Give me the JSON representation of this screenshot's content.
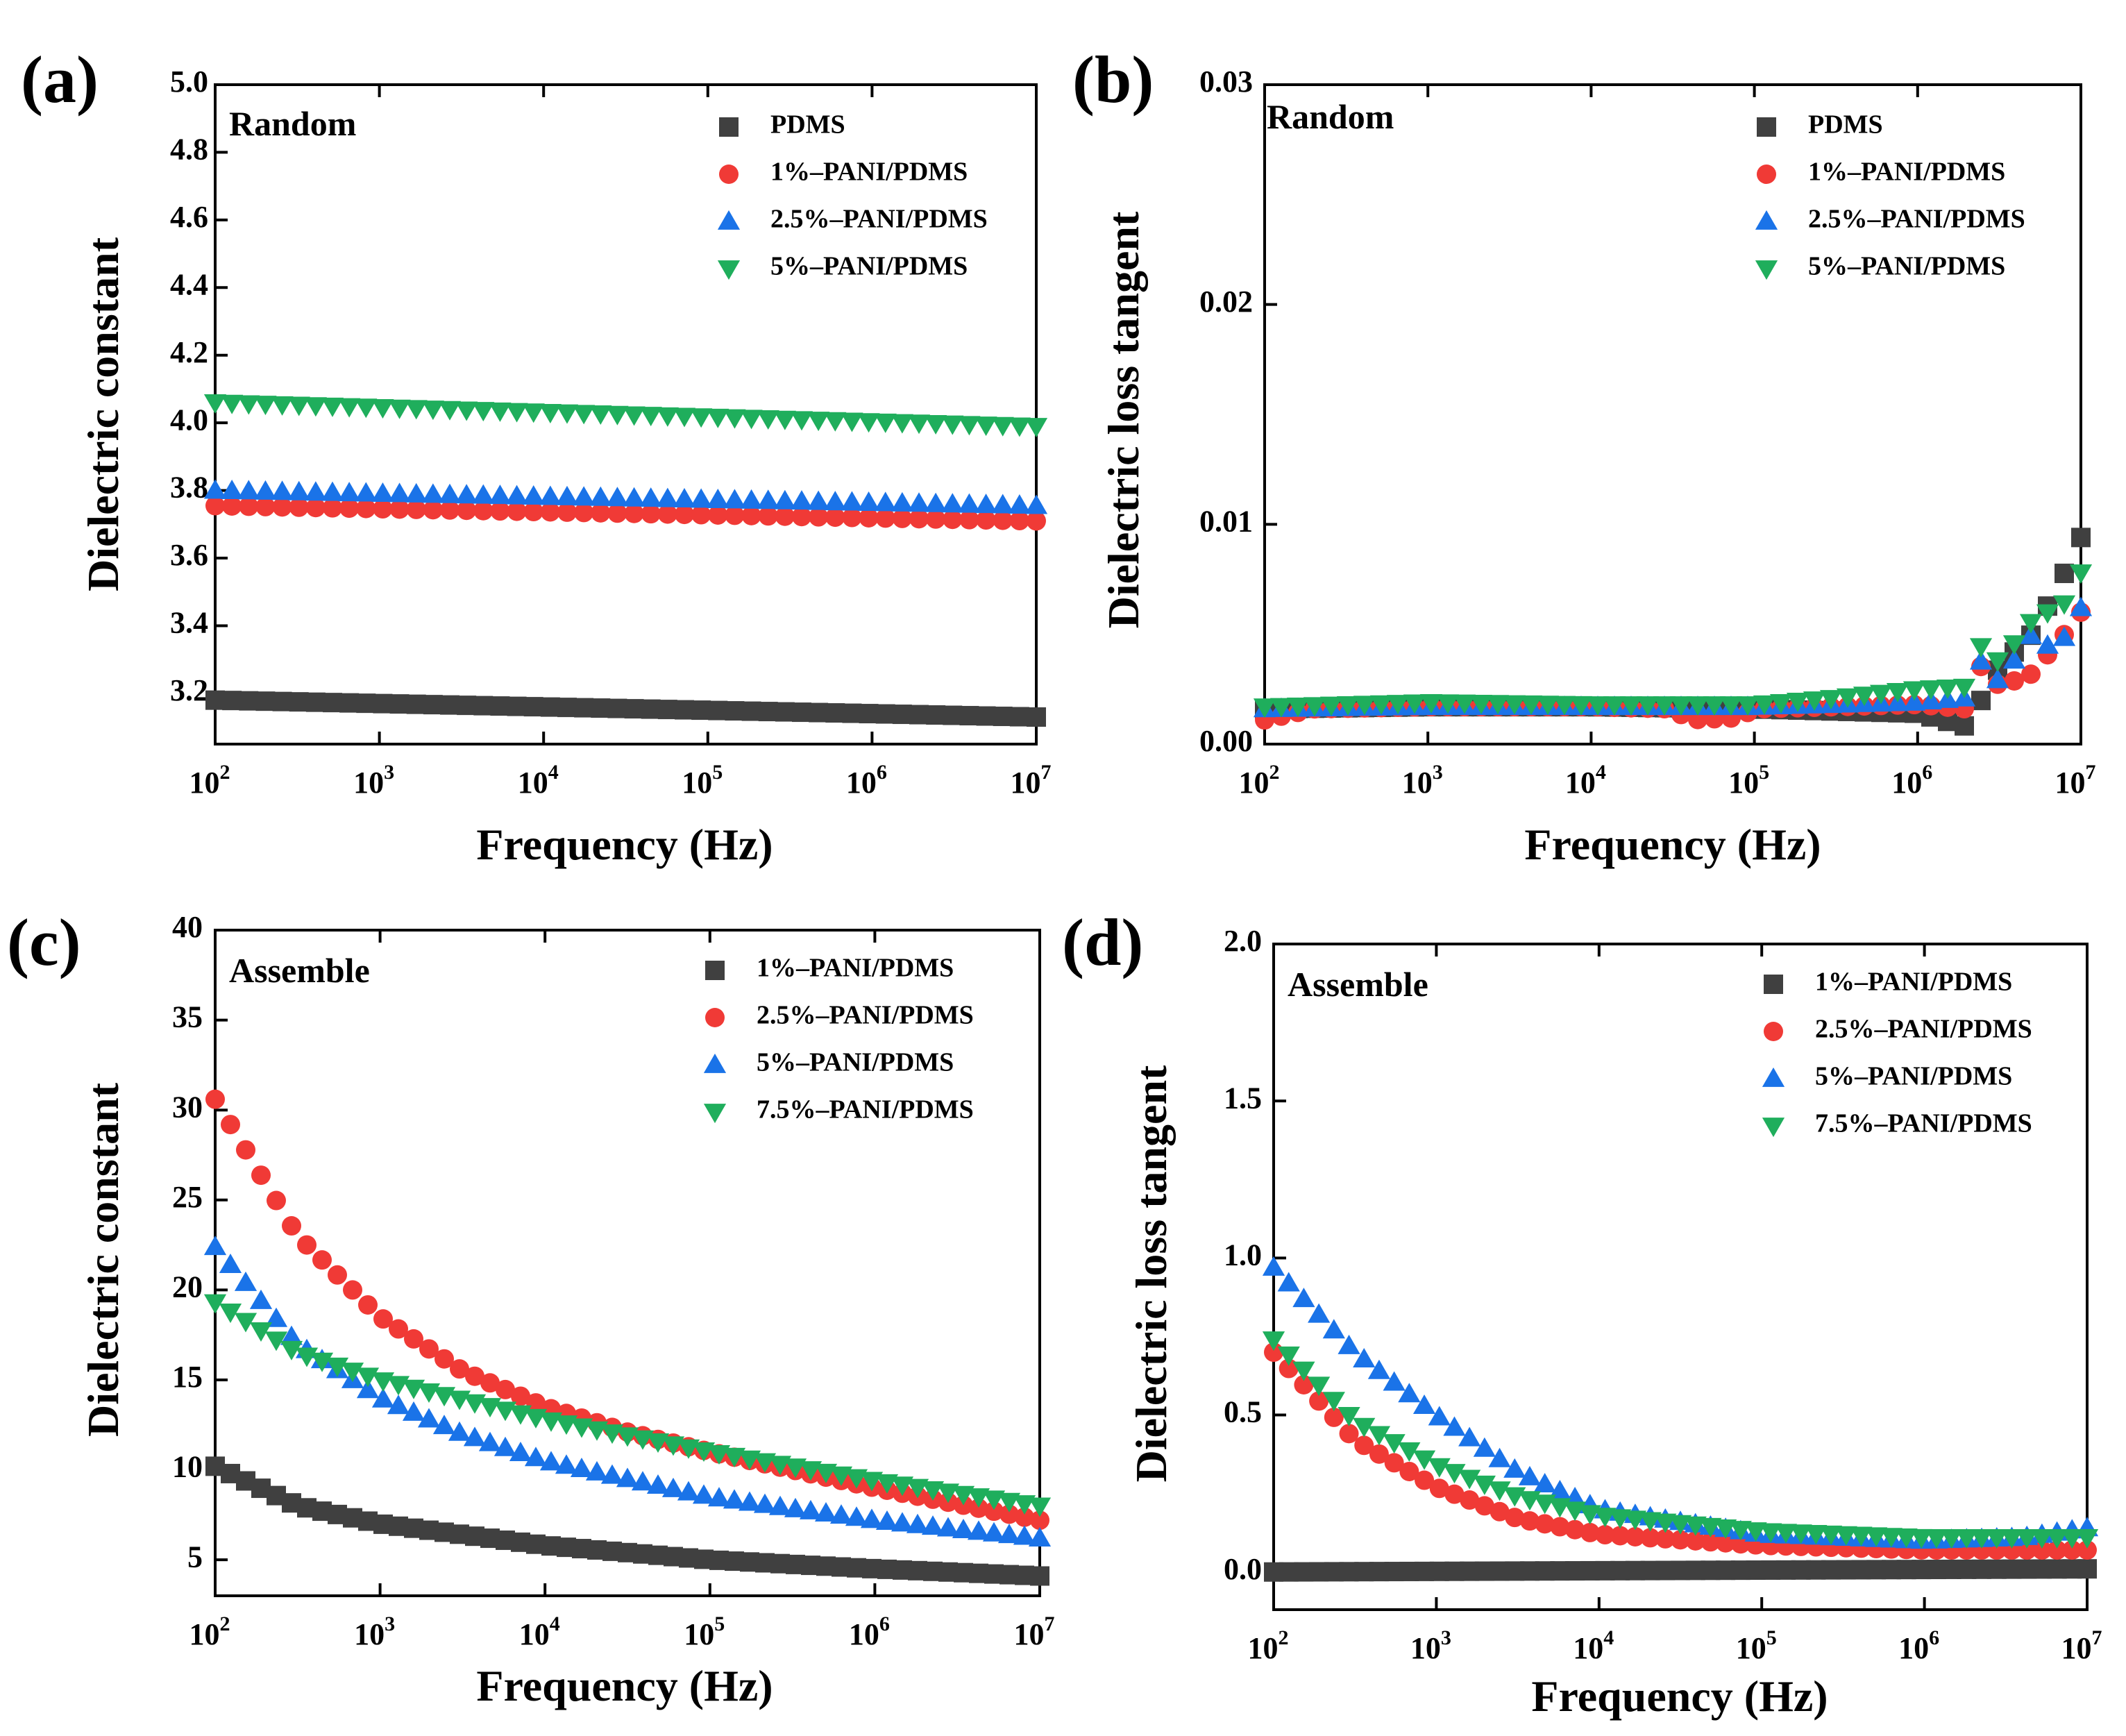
{
  "colors": {
    "gray": "#404040",
    "red": "#f03a36",
    "blue": "#1a73e8",
    "green": "#1fae5c"
  },
  "chart_data": [
    {
      "panel": "(a)",
      "type": "scatter",
      "annotation": "Random",
      "xlabel": "Frequency (Hz)",
      "ylabel": "Dielectric constant",
      "xscale": "log",
      "xlim": [
        100,
        10000000
      ],
      "ylim": [
        3.05,
        5.0
      ],
      "xticks": [
        100,
        1000,
        10000,
        100000,
        1000000,
        10000000
      ],
      "xtick_base": [
        "10",
        "10",
        "10",
        "10",
        "10",
        "10"
      ],
      "xtick_exp": [
        "2",
        "3",
        "4",
        "5",
        "6",
        "7"
      ],
      "yticks": [
        3.2,
        3.4,
        3.6,
        3.8,
        4.0,
        4.2,
        4.4,
        4.6,
        4.8,
        5.0
      ],
      "ytick_labels": [
        "3.2",
        "3.4",
        "3.6",
        "3.8",
        "4.0",
        "4.2",
        "4.4",
        "4.6",
        "4.8",
        "5.0"
      ],
      "legend_position": "top-right",
      "n_points": 50,
      "series": [
        {
          "name": "PDMS",
          "marker": "square",
          "color": "gray",
          "curve": {
            "kind": "log_linear",
            "start": 3.18,
            "end": 3.13
          }
        },
        {
          "name": "1%–PANI/PDMS",
          "marker": "circle",
          "color": "red",
          "curve": {
            "kind": "log_linear",
            "start": 3.755,
            "end": 3.71
          }
        },
        {
          "name": "2.5%–PANI/PDMS",
          "marker": "triangle-up",
          "color": "blue",
          "curve": {
            "kind": "log_linear",
            "start": 3.8,
            "end": 3.755
          }
        },
        {
          "name": "5%–PANI/PDMS",
          "marker": "triangle-down",
          "color": "green",
          "curve": {
            "kind": "log_linear",
            "start": 4.06,
            "end": 3.99
          }
        }
      ]
    },
    {
      "panel": "(b)",
      "type": "scatter",
      "annotation": "Random",
      "xlabel": "Frequency (Hz)",
      "ylabel": "Dielectric loss tangent",
      "xscale": "log",
      "xlim": [
        100,
        10000000
      ],
      "ylim": [
        0,
        0.03
      ],
      "xticks": [
        100,
        1000,
        10000,
        100000,
        1000000,
        10000000
      ],
      "xtick_base": [
        "10",
        "10",
        "10",
        "10",
        "10",
        "10"
      ],
      "xtick_exp": [
        "2",
        "3",
        "4",
        "5",
        "6",
        "7"
      ],
      "yticks": [
        0,
        0.01,
        0.02,
        0.03
      ],
      "ytick_labels": [
        "0.00",
        "0.01",
        "0.02",
        "0.03"
      ],
      "legend_position": "top-right",
      "n_points": 50,
      "series": [
        {
          "name": "PDMS",
          "marker": "square",
          "color": "gray",
          "curve": {
            "kind": "knots",
            "knots": [
              [
                2,
                0.0016
              ],
              [
                3,
                0.0017
              ],
              [
                4,
                0.0017
              ],
              [
                5,
                0.0016
              ],
              [
                5.5,
                0.0015
              ],
              [
                6,
                0.0014
              ],
              [
                6.3,
                0.0008
              ],
              [
                6.5,
                0.0035
              ],
              [
                6.7,
                0.005
              ],
              [
                6.85,
                0.007
              ],
              [
                7,
                0.0094
              ]
            ]
          }
        },
        {
          "name": "1%–PANI/PDMS",
          "marker": "circle",
          "color": "red",
          "curve": {
            "kind": "knots",
            "knots": [
              [
                2,
                0.0011
              ],
              [
                2.3,
                0.0016
              ],
              [
                3,
                0.0017
              ],
              [
                4,
                0.0017
              ],
              [
                4.5,
                0.0016
              ],
              [
                4.6,
                0.0011
              ],
              [
                4.9,
                0.0012
              ],
              [
                5,
                0.0016
              ],
              [
                6,
                0.0018
              ],
              [
                6.3,
                0.0016
              ],
              [
                6.4,
                0.0038
              ],
              [
                6.5,
                0.0026
              ],
              [
                6.7,
                0.0032
              ],
              [
                6.9,
                0.005
              ],
              [
                7,
                0.006
              ]
            ]
          }
        },
        {
          "name": "2.5%–PANI/PDMS",
          "marker": "triangle-up",
          "color": "blue",
          "curve": {
            "kind": "knots",
            "knots": [
              [
                2,
                0.0016
              ],
              [
                3,
                0.0017
              ],
              [
                4,
                0.0017
              ],
              [
                5,
                0.0017
              ],
              [
                6,
                0.0019
              ],
              [
                6.3,
                0.0021
              ],
              [
                6.4,
                0.004
              ],
              [
                6.5,
                0.0028
              ],
              [
                6.7,
                0.005
              ],
              [
                6.85,
                0.0042
              ],
              [
                7,
                0.0062
              ]
            ]
          }
        },
        {
          "name": "5%–PANI/PDMS",
          "marker": "triangle-down",
          "color": "green",
          "curve": {
            "kind": "knots",
            "knots": [
              [
                2,
                0.0017
              ],
              [
                3,
                0.0019
              ],
              [
                4,
                0.0018
              ],
              [
                5,
                0.0018
              ],
              [
                5.5,
                0.0021
              ],
              [
                6,
                0.0025
              ],
              [
                6.3,
                0.0026
              ],
              [
                6.4,
                0.0047
              ],
              [
                6.5,
                0.0037
              ],
              [
                6.7,
                0.0056
              ],
              [
                6.9,
                0.0064
              ],
              [
                7,
                0.0078
              ]
            ]
          }
        }
      ]
    },
    {
      "panel": "(c)",
      "type": "scatter",
      "annotation": "Assemble",
      "xlabel": "Frequency (Hz)",
      "ylabel": "Dielectric constant",
      "xscale": "log",
      "xlim": [
        100,
        10000000
      ],
      "ylim": [
        3,
        40
      ],
      "xticks": [
        100,
        1000,
        10000,
        100000,
        1000000,
        10000000
      ],
      "xtick_base": [
        "10",
        "10",
        "10",
        "10",
        "10",
        "10"
      ],
      "xtick_exp": [
        "2",
        "3",
        "4",
        "5",
        "6",
        "7"
      ],
      "yticks": [
        5,
        10,
        15,
        20,
        25,
        30,
        35,
        40
      ],
      "ytick_labels": [
        "5",
        "10",
        "15",
        "20",
        "25",
        "30",
        "35",
        "40"
      ],
      "legend_position": "top-right",
      "n_points": 55,
      "series": [
        {
          "name": "1%–PANI/PDMS",
          "marker": "square",
          "color": "gray",
          "curve": {
            "kind": "knots",
            "knots": [
              [
                2,
                10.2
              ],
              [
                2.5,
                8.0
              ],
              [
                3,
                7.0
              ],
              [
                4,
                5.8
              ],
              [
                5,
                5.0
              ],
              [
                6,
                4.5
              ],
              [
                7,
                4.1
              ]
            ]
          }
        },
        {
          "name": "2.5%–PANI/PDMS",
          "marker": "circle",
          "color": "red",
          "curve": {
            "kind": "knots",
            "knots": [
              [
                2,
                30.6
              ],
              [
                2.5,
                23.0
              ],
              [
                3,
                18.5
              ],
              [
                3.5,
                15.5
              ],
              [
                4,
                13.5
              ],
              [
                4.5,
                12.1
              ],
              [
                5,
                11.0
              ],
              [
                6,
                9.0
              ],
              [
                7,
                7.2
              ]
            ]
          }
        },
        {
          "name": "5%–PANI/PDMS",
          "marker": "triangle-up",
          "color": "blue",
          "curve": {
            "kind": "knots",
            "knots": [
              [
                2,
                22.4
              ],
              [
                2.5,
                17.0
              ],
              [
                3,
                14.0
              ],
              [
                3.5,
                12.0
              ],
              [
                4,
                10.5
              ],
              [
                5,
                8.5
              ],
              [
                6,
                7.2
              ],
              [
                7,
                6.2
              ]
            ]
          }
        },
        {
          "name": "7.5%–PANI/PDMS",
          "marker": "triangle-down",
          "color": "green",
          "curve": {
            "kind": "knots",
            "knots": [
              [
                2,
                19.3
              ],
              [
                2.5,
                16.5
              ],
              [
                3,
                15.0
              ],
              [
                4,
                12.8
              ],
              [
                5,
                11.0
              ],
              [
                6,
                9.4
              ],
              [
                7,
                8.0
              ]
            ]
          }
        }
      ]
    },
    {
      "panel": "(d)",
      "type": "scatter",
      "annotation": "Assemble",
      "xlabel": "Frequency (Hz)",
      "ylabel": "Dielectric loss tangent",
      "xscale": "log",
      "xlim": [
        100,
        10000000
      ],
      "ylim": [
        -0.12,
        2.0
      ],
      "xticks": [
        100,
        1000,
        10000,
        100000,
        1000000,
        10000000
      ],
      "xtick_base": [
        "10",
        "10",
        "10",
        "10",
        "10",
        "10"
      ],
      "xtick_exp": [
        "2",
        "3",
        "4",
        "5",
        "6",
        "7"
      ],
      "yticks": [
        0,
        0.5,
        1.0,
        1.5,
        2.0
      ],
      "ytick_labels": [
        "0.0",
        "0.5",
        "1.0",
        "1.5",
        "2.0"
      ],
      "legend_position": "top-right",
      "n_points": 55,
      "series": [
        {
          "name": "1%–PANI/PDMS",
          "marker": "square",
          "color": "gray",
          "curve": {
            "kind": "knots",
            "knots": [
              [
                2,
                0.0
              ],
              [
                7,
                0.01
              ]
            ]
          }
        },
        {
          "name": "2.5%–PANI/PDMS",
          "marker": "circle",
          "color": "red",
          "curve": {
            "kind": "knots",
            "knots": [
              [
                2,
                0.7
              ],
              [
                2.5,
                0.42
              ],
              [
                3,
                0.27
              ],
              [
                3.5,
                0.17
              ],
              [
                4,
                0.12
              ],
              [
                5,
                0.085
              ],
              [
                6,
                0.07
              ],
              [
                7,
                0.07
              ]
            ]
          }
        },
        {
          "name": "5%–PANI/PDMS",
          "marker": "triangle-up",
          "color": "blue",
          "curve": {
            "kind": "knots",
            "knots": [
              [
                2,
                0.97
              ],
              [
                2.5,
                0.7
              ],
              [
                3,
                0.5
              ],
              [
                3.5,
                0.32
              ],
              [
                4,
                0.2
              ],
              [
                5,
                0.12
              ],
              [
                6,
                0.1
              ],
              [
                6.6,
                0.11
              ],
              [
                7,
                0.14
              ]
            ]
          }
        },
        {
          "name": "7.5%–PANI/PDMS",
          "marker": "triangle-down",
          "color": "green",
          "curve": {
            "kind": "knots",
            "knots": [
              [
                2,
                0.74
              ],
              [
                2.5,
                0.48
              ],
              [
                3,
                0.34
              ],
              [
                3.5,
                0.24
              ],
              [
                4,
                0.18
              ],
              [
                5,
                0.13
              ],
              [
                6,
                0.11
              ],
              [
                7,
                0.11
              ]
            ]
          }
        }
      ]
    }
  ]
}
